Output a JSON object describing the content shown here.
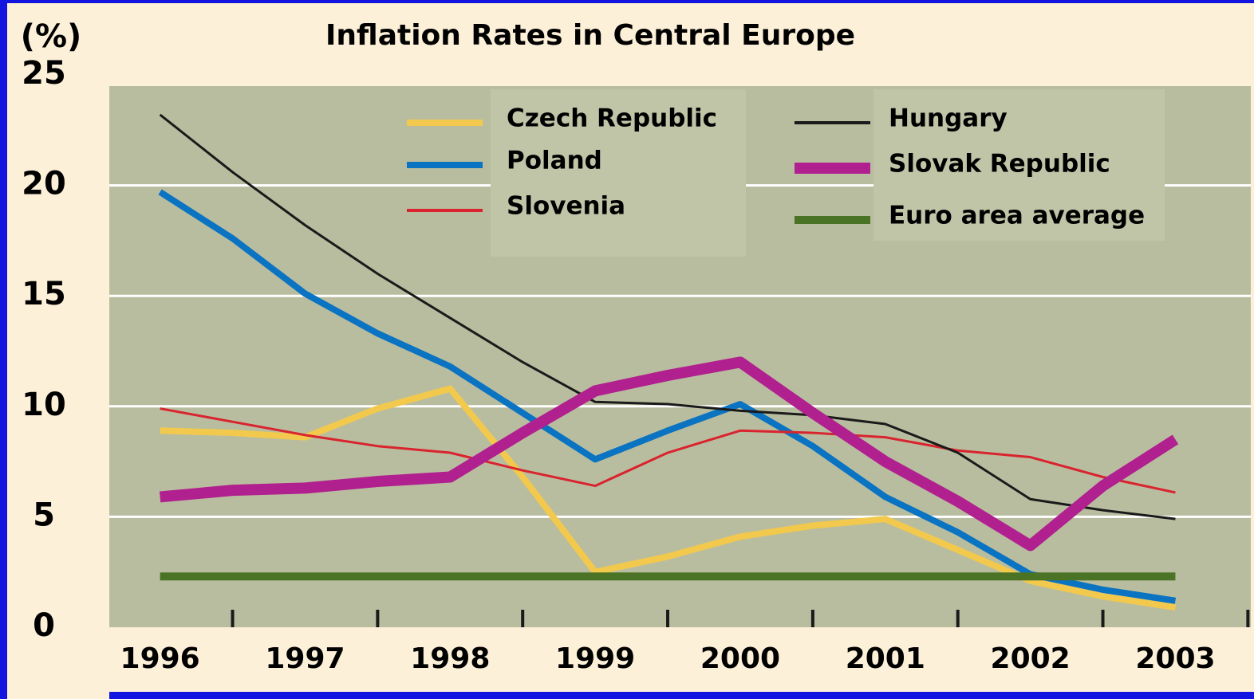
{
  "chart_data": {
    "type": "line",
    "title": "Inflation Rates in Central Europe",
    "y_label": "(%)",
    "x": [
      1996,
      1996.5,
      1997,
      1997.5,
      1998,
      1998.5,
      1999,
      1999.5,
      2000,
      2000.5,
      2001,
      2001.5,
      2002,
      2002.5,
      2003
    ],
    "xlim": [
      1995.65,
      2003.52
    ],
    "xticks": [
      1996,
      1997,
      1998,
      1999,
      2000,
      2001,
      2002,
      2003
    ],
    "xminorticks": [
      1996.5,
      1997.5,
      1998.5,
      1999.5,
      2000.5,
      2001.5,
      2002.5,
      2003.5
    ],
    "ylim": [
      0,
      25
    ],
    "yticks": [
      0,
      5,
      10,
      15,
      20,
      25
    ],
    "grid": true,
    "series": [
      {
        "name": "Czech Republic",
        "color": "#f2c94c",
        "width": 8,
        "values": [
          8.9,
          8.8,
          8.6,
          9.9,
          10.8,
          6.8,
          2.5,
          3.2,
          4.1,
          4.6,
          4.9,
          3.5,
          2.1,
          1.4,
          0.9
        ]
      },
      {
        "name": "Poland",
        "color": "#0a73c2",
        "width": 8,
        "values": [
          19.7,
          17.6,
          15.1,
          13.3,
          11.8,
          9.7,
          7.6,
          8.9,
          10.1,
          8.2,
          5.9,
          4.3,
          2.4,
          1.7,
          1.2
        ]
      },
      {
        "name": "Slovenia",
        "color": "#d9232e",
        "width": 3,
        "values": [
          9.9,
          9.3,
          8.7,
          8.2,
          7.9,
          7.1,
          6.4,
          7.9,
          8.9,
          8.8,
          8.6,
          8.0,
          7.7,
          6.8,
          6.1
        ]
      },
      {
        "name": "Hungary",
        "color": "#1a1a1a",
        "width": 3,
        "values": [
          23.2,
          20.6,
          18.2,
          16.0,
          14.0,
          12.0,
          10.2,
          10.1,
          9.8,
          9.6,
          9.2,
          7.9,
          5.8,
          5.3,
          4.9
        ]
      },
      {
        "name": "Slovak Republic",
        "color": "#b1208f",
        "width": 14,
        "values": [
          5.9,
          6.2,
          6.3,
          6.6,
          6.8,
          8.8,
          10.7,
          11.4,
          12.0,
          9.7,
          7.5,
          5.7,
          3.7,
          6.4,
          8.5
        ]
      },
      {
        "name": "Euro area average",
        "color": "#4a7325",
        "width": 10,
        "values": [
          2.3,
          2.3,
          2.3,
          2.3,
          2.3,
          2.3,
          2.3,
          2.3,
          2.3,
          2.3,
          2.3,
          2.3,
          2.3,
          2.3,
          2.3
        ]
      }
    ]
  }
}
